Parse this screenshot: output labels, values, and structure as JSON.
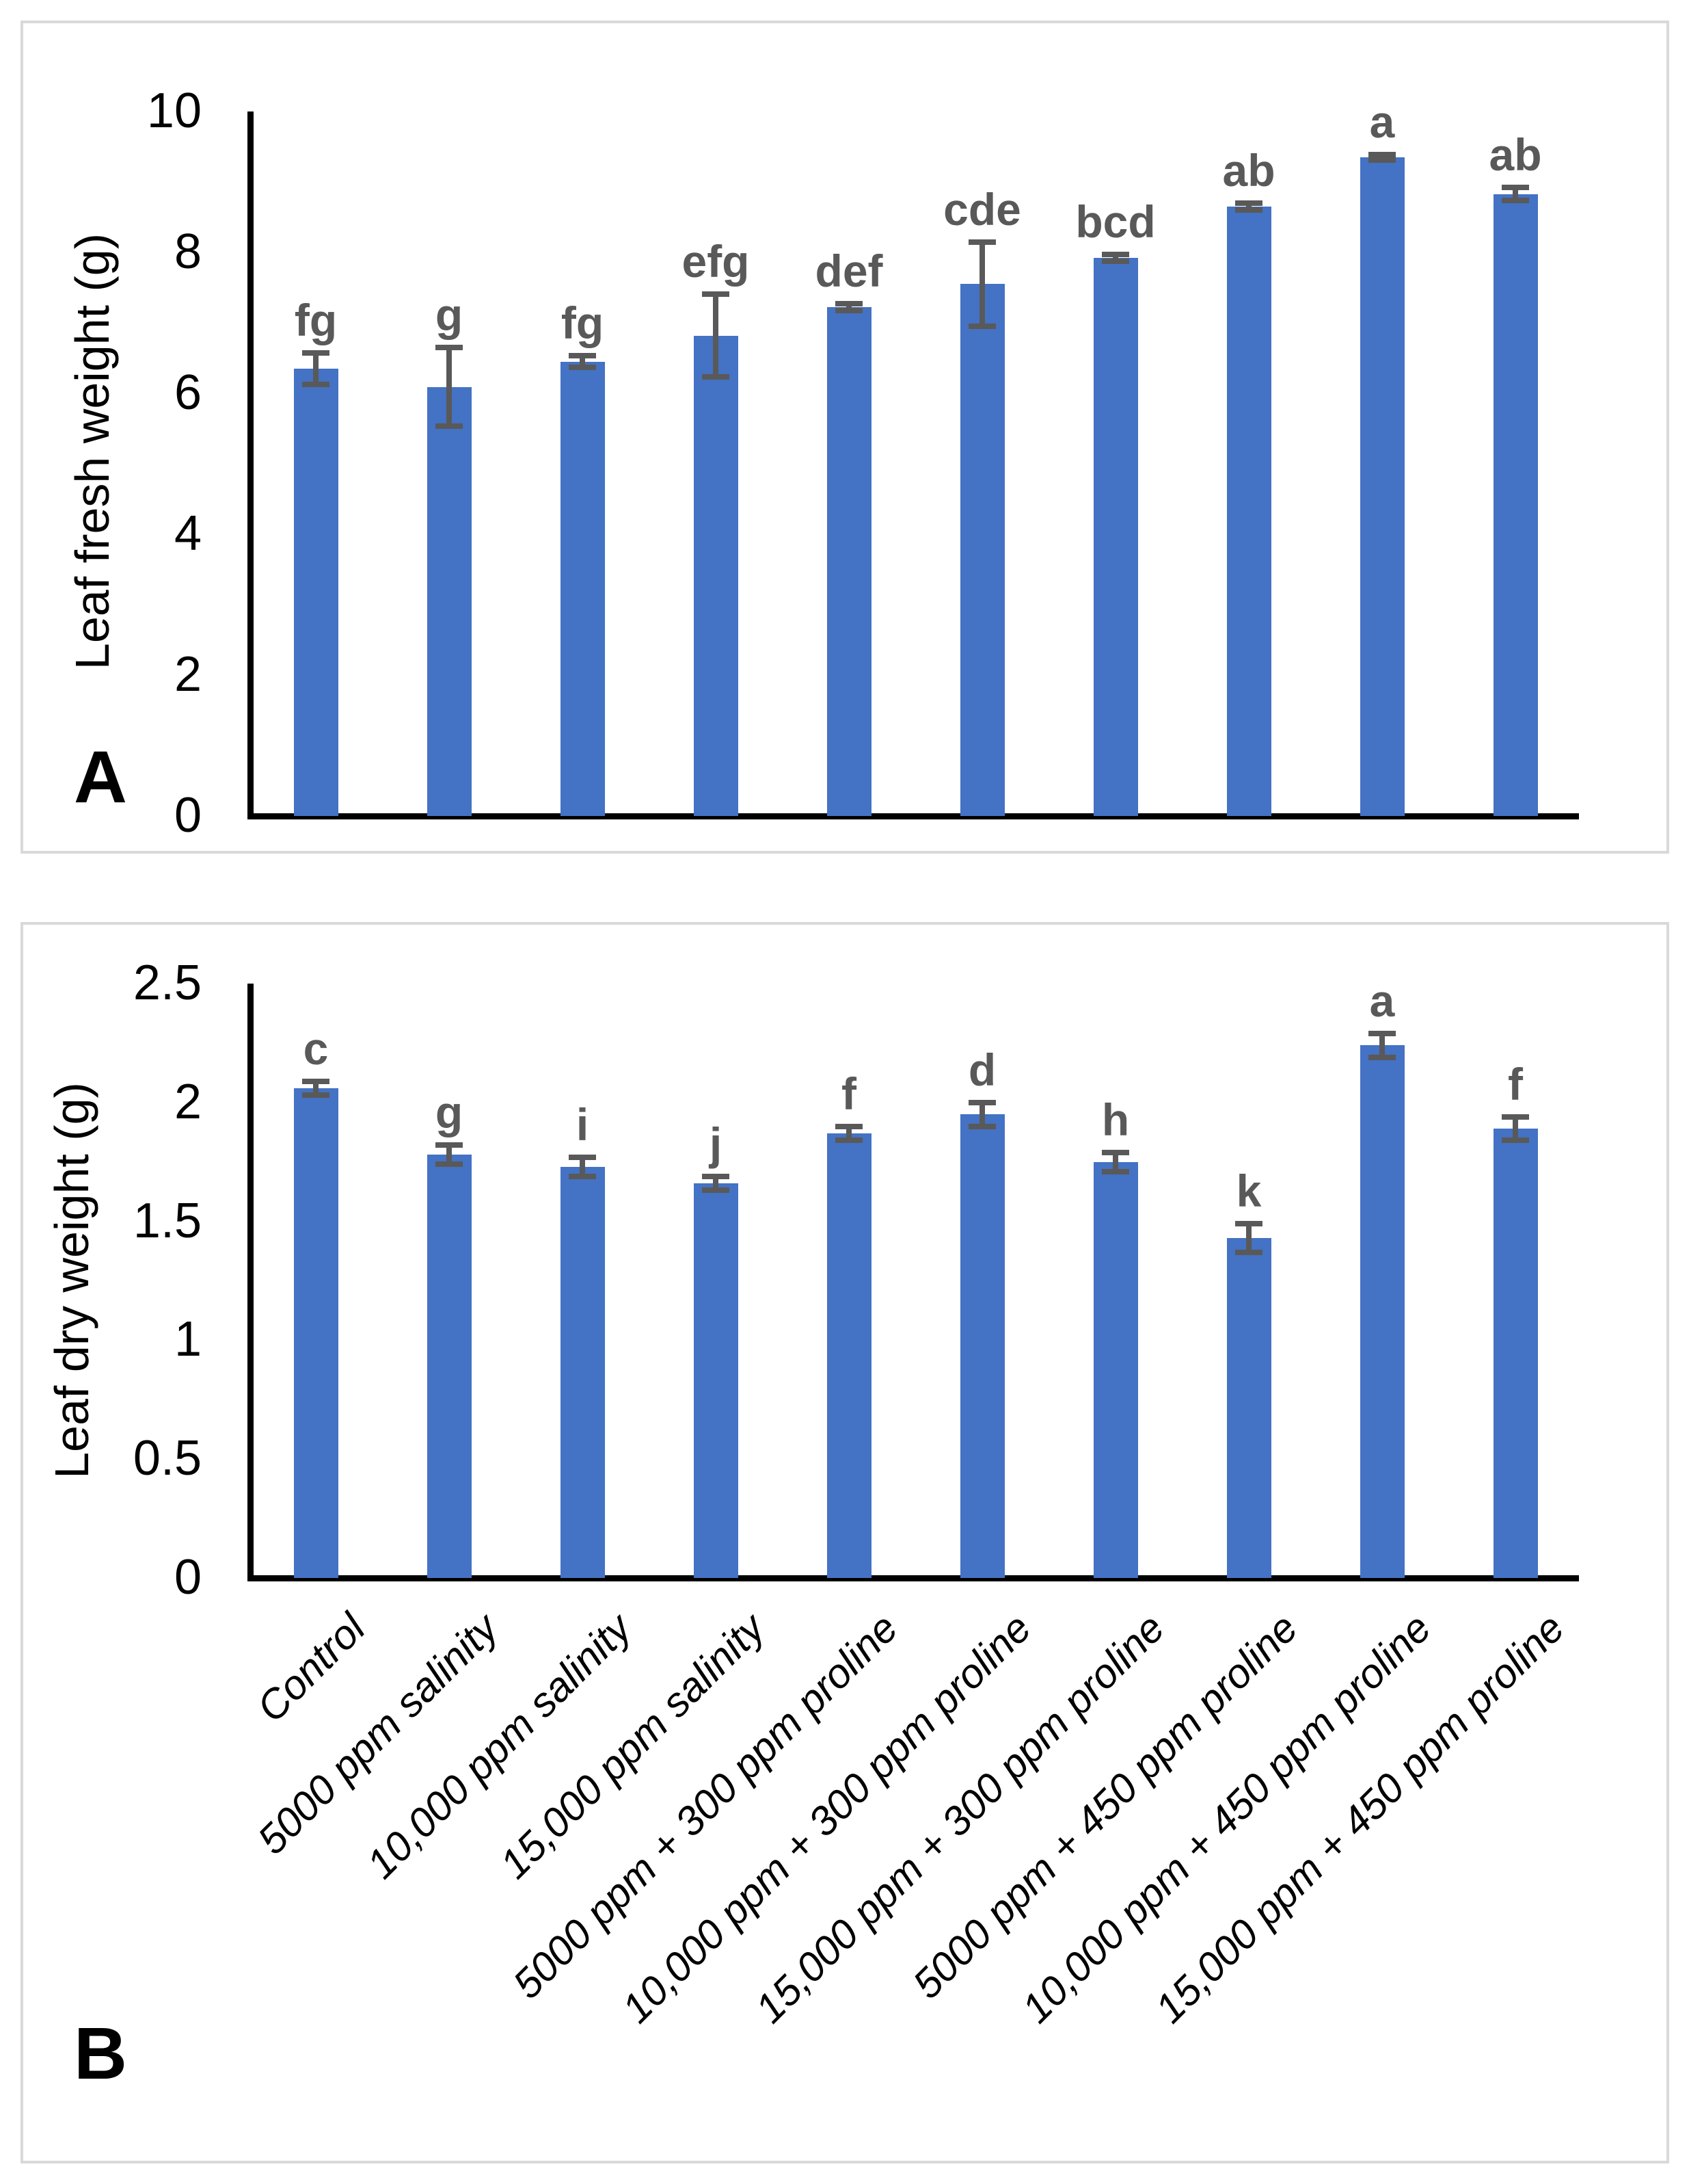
{
  "figure_title": "",
  "chart_data": [
    {
      "type": "bar",
      "panel_label": "A",
      "title": "",
      "xlabel": "",
      "ylabel": "Leaf fresh weight (g)",
      "ylim": [
        0,
        10
      ],
      "ytick_labels": [
        "0",
        "2",
        "4",
        "6",
        "8",
        "10"
      ],
      "grid": false,
      "legend": null,
      "bar_color": "#4472C4",
      "error_color": "#595959",
      "x_tick_labels_visible": false,
      "categories": [
        "Control",
        "5000 ppm salinity",
        "10,000 ppm salinity",
        "15,000 ppm salinity",
        "5000 ppm + 300 ppm proline",
        "10,000 ppm + 300 ppm proline",
        "15,000 ppm + 300 ppm proline",
        "5000 ppm + 450 ppm proline",
        "10,000 ppm + 450 ppm proline",
        "15,000 ppm + 450 ppm proline"
      ],
      "values": [
        6.35,
        6.09,
        6.45,
        6.82,
        7.22,
        7.55,
        7.92,
        8.65,
        9.35,
        8.83
      ],
      "errors": [
        0.22,
        0.56,
        0.08,
        0.59,
        0.05,
        0.6,
        0.05,
        0.05,
        0.04,
        0.09
      ],
      "sig_letters": [
        "fg",
        "g",
        "fg",
        "efg",
        "def",
        "cde",
        "bcd",
        "ab",
        "a",
        "ab"
      ]
    },
    {
      "type": "bar",
      "panel_label": "B",
      "title": "",
      "xlabel": "",
      "ylabel": "Leaf dry weight (g)",
      "ylim": [
        0,
        2.5
      ],
      "ytick_labels": [
        "0",
        "0.5",
        "1",
        "1.5",
        "2",
        "2.5"
      ],
      "grid": false,
      "legend": null,
      "bar_color": "#4472C4",
      "error_color": "#595959",
      "x_tick_labels_visible": true,
      "categories": [
        "Control",
        "5000 ppm salinity",
        "10,000 ppm salinity",
        "15,000 ppm salinity",
        "5000 ppm + 300 ppm proline",
        "10,000 ppm + 300 ppm proline",
        "15,000 ppm + 300 ppm proline",
        "5000 ppm + 450 ppm proline",
        "10,000 ppm + 450 ppm proline",
        "15,000 ppm + 450 ppm proline"
      ],
      "values": [
        2.06,
        1.78,
        1.73,
        1.66,
        1.87,
        1.95,
        1.75,
        1.43,
        2.24,
        1.89
      ],
      "errors": [
        0.03,
        0.04,
        0.04,
        0.03,
        0.03,
        0.05,
        0.04,
        0.06,
        0.05,
        0.05
      ],
      "sig_letters": [
        "c",
        "g",
        "i",
        "j",
        "f",
        "d",
        "h",
        "k",
        "a",
        "f"
      ]
    }
  ]
}
